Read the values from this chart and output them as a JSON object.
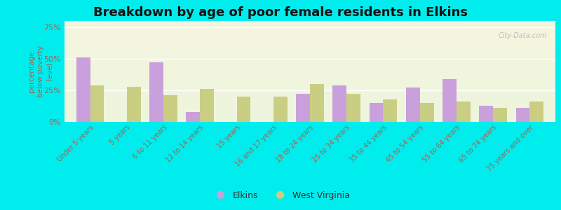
{
  "title": "Breakdown by age of poor female residents in Elkins",
  "ylabel": "percentage\nbelow poverty\nlevel",
  "categories": [
    "Under 5 years",
    "5 years",
    "6 to 11 years",
    "12 to 14 years",
    "15 years",
    "16 and 17 years",
    "18 to 24 years",
    "25 to 34 years",
    "35 to 44 years",
    "45 to 54 years",
    "55 to 64 years",
    "65 to 74 years",
    "75 years and over"
  ],
  "elkins": [
    51,
    0,
    47,
    8,
    0,
    0,
    22,
    29,
    15,
    27,
    34,
    13,
    11
  ],
  "west_virginia": [
    29,
    28,
    21,
    26,
    20,
    20,
    30,
    22,
    18,
    15,
    16,
    11,
    16
  ],
  "elkins_color": "#c9a0dc",
  "wv_color": "#cace82",
  "outer_bg": "#00eded",
  "plot_bg_top": "#eef5dd",
  "plot_bg_bottom": "#f5f5e0",
  "ylim": [
    0,
    80
  ],
  "yticks": [
    0,
    25,
    50,
    75
  ],
  "ytick_labels": [
    "0%",
    "25%",
    "50%",
    "75%"
  ],
  "title_fontsize": 13,
  "axis_label_color": "#996655",
  "tick_label_color": "#996655",
  "legend_elkins": "Elkins",
  "legend_wv": "West Virginia",
  "watermark": "City-Data.com"
}
